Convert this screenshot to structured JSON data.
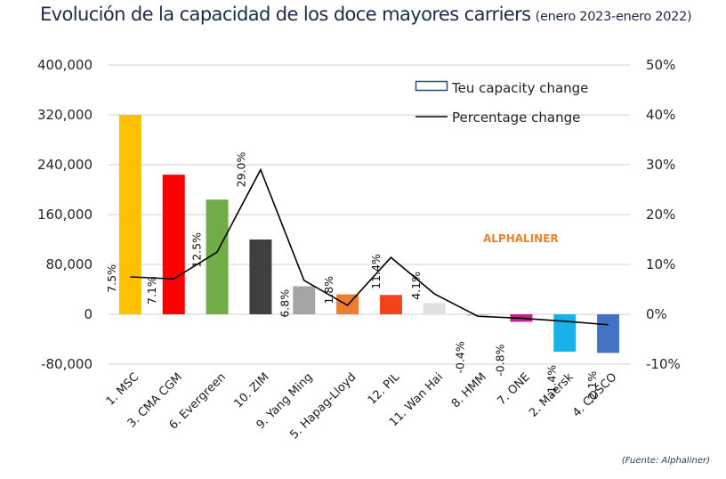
{
  "header": {
    "title": "Evolución de la capacidad de los doce mayores carriers",
    "subtitle": "(enero 2023-enero 2022)"
  },
  "source": "(Fuente: Alphaliner)",
  "watermark": "ALPHALINER",
  "colors": {
    "title": "#1d2a4a",
    "line": "#000000",
    "gridline": "#d9d9d9",
    "legend_box_border": "#2f4b7c"
  },
  "chart_data": {
    "type": "bar",
    "combo": "bar + line (dual axis)",
    "title": "Evolución de la capacidad de los doce mayores carriers (enero 2023-enero 2022)",
    "xlabel": "",
    "ylabel": "",
    "y2label": "",
    "grid": true,
    "legend_position": "top-right",
    "categories": [
      "1. MSC",
      "3. CMA CGM",
      "6. Evergreen",
      "10. ZIM",
      "9. Yang Ming",
      "5. Hapag-Lloyd",
      "12. PIL",
      "11. Wan Hai",
      "8. HMM",
      "7. ONE",
      "2. Maersk",
      "4. COSCO"
    ],
    "series": [
      {
        "name": "Teu capacity change",
        "type": "bar",
        "axis": "left",
        "values": [
          320000,
          224000,
          184000,
          120000,
          45000,
          32000,
          31000,
          18000,
          -2000,
          -12000,
          -60000,
          -62000
        ],
        "colors": [
          "#ffc000",
          "#ff0000",
          "#70ad47",
          "#404040",
          "#a5a5a5",
          "#ed7d31",
          "#f4431a",
          "#e0e0e0",
          "#bfbfbf",
          "#c0208f",
          "#1ab0ea",
          "#4472c4"
        ]
      },
      {
        "name": "Percentage change",
        "type": "line",
        "axis": "right",
        "values": [
          7.5,
          7.1,
          12.5,
          29.0,
          6.8,
          1.8,
          11.4,
          4.1,
          -0.4,
          -0.8,
          -1.4,
          -2.1
        ],
        "data_labels": [
          "7.5%",
          "7.1%",
          "12.5%",
          "29.0%",
          "6.8%",
          "1.8%",
          "11.4%",
          "4.1%",
          "-0.4%",
          "-0.8%",
          "-1.4%",
          "-2.1%"
        ]
      }
    ],
    "y_axis": {
      "range": [
        -80000,
        400000
      ],
      "ticks": [
        400000,
        320000,
        240000,
        160000,
        80000,
        0,
        -80000
      ],
      "tick_labels": [
        "400,000",
        "320,000",
        "240,000",
        "160,000",
        "80,000",
        "0",
        "-80,000"
      ]
    },
    "y2_axis": {
      "range": [
        -10,
        50
      ],
      "ticks": [
        50,
        40,
        30,
        20,
        10,
        0,
        -10
      ],
      "tick_labels": [
        "50%",
        "40%",
        "30%",
        "20%",
        "10%",
        "0%",
        "-10%"
      ]
    },
    "legend": [
      {
        "label": "Teu capacity change",
        "symbol": "box"
      },
      {
        "label": "Percentage change",
        "symbol": "line"
      }
    ]
  }
}
